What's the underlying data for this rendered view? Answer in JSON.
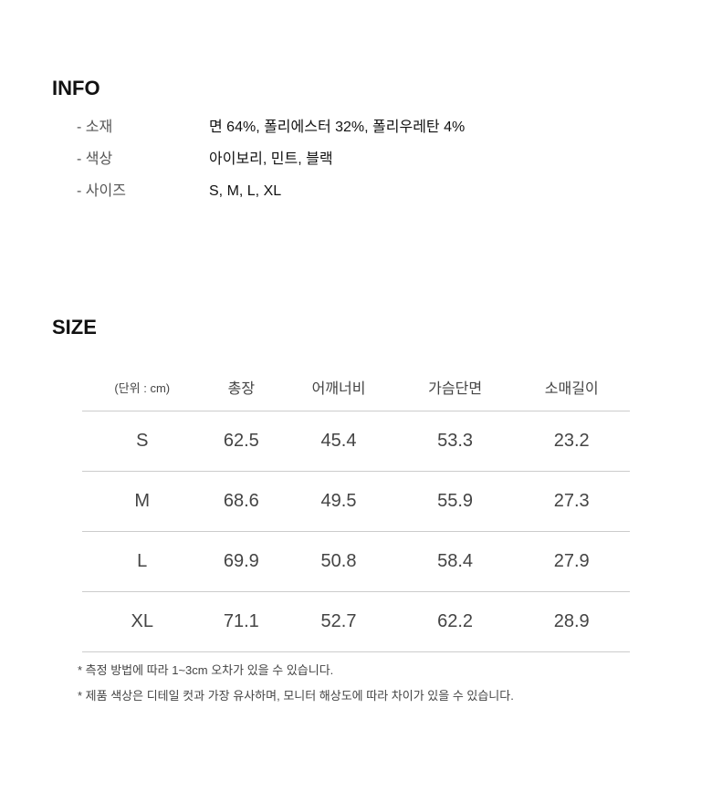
{
  "info": {
    "title": "INFO",
    "rows": [
      {
        "label": "- 소재",
        "value": "면 64%, 폴리에스터 32%, 폴리우레탄 4%"
      },
      {
        "label": "- 색상",
        "value": "아이보리, 민트, 블랙"
      },
      {
        "label": "- 사이즈",
        "value": "S, M, L, XL"
      }
    ]
  },
  "size": {
    "title": "SIZE",
    "headers": [
      "(단위 : cm)",
      "총장",
      "어깨너비",
      "가슴단면",
      "소매길이"
    ],
    "rows": [
      [
        "S",
        "62.5",
        "45.4",
        "53.3",
        "23.2"
      ],
      [
        "M",
        "68.6",
        "49.5",
        "55.9",
        "27.3"
      ],
      [
        "L",
        "69.9",
        "50.8",
        "58.4",
        "27.9"
      ],
      [
        "XL",
        "71.1",
        "52.7",
        "62.2",
        "28.9"
      ]
    ]
  },
  "notes": [
    "* 측정 방법에 따라 1~3cm 오차가 있을 수 있습니다.",
    "* 제품 색상은 디테일 컷과 가장 유사하며, 모니터 해상도에 따라 차이가 있을 수 있습니다."
  ]
}
